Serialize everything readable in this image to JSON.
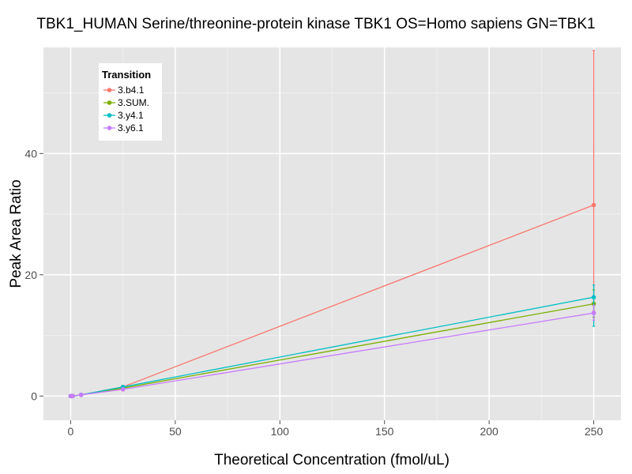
{
  "chart_data": {
    "type": "line",
    "title": "TBK1_HUMAN Serine/threonine-protein kinase TBK1 OS=Homo sapiens GN=TBK1",
    "xlabel": "Theoretical Concentration (fmol/uL)",
    "ylabel": "Peak Area Ratio",
    "xlim": [
      -13,
      263
    ],
    "ylim": [
      -4,
      57.5
    ],
    "xticks": [
      0,
      50,
      100,
      150,
      200,
      250
    ],
    "yticks": [
      0,
      20,
      40
    ],
    "grid": true,
    "legend": {
      "title": "Transition",
      "position": "top-left"
    },
    "x": [
      0,
      0.5,
      1,
      5,
      25,
      250
    ],
    "series": [
      {
        "name": "3.b4.1",
        "color": "#f8766d",
        "values": [
          0,
          0,
          0,
          0.2,
          1.5,
          31.5
        ],
        "error_high": [
          0,
          0,
          0,
          0,
          0,
          57.0
        ],
        "error_low": [
          0,
          0,
          0,
          0,
          0,
          14.0
        ]
      },
      {
        "name": "3.SUM.",
        "color": "#7cae00",
        "values": [
          0,
          0,
          0,
          0.2,
          1.3,
          15.2
        ],
        "error_high": [
          0,
          0,
          0,
          0,
          0,
          17.5
        ],
        "error_low": [
          0,
          0,
          0,
          0,
          0,
          13.0
        ]
      },
      {
        "name": "3.y4.1",
        "color": "#00bfc4",
        "values": [
          0,
          0,
          0,
          0.2,
          1.5,
          16.3
        ],
        "error_high": [
          0,
          0,
          0,
          0,
          0,
          18.3
        ],
        "error_low": [
          0,
          0,
          0,
          0,
          0,
          11.5
        ]
      },
      {
        "name": "3.y6.1",
        "color": "#c77cff",
        "values": [
          0,
          0,
          0,
          0.2,
          1.1,
          13.7
        ],
        "error_high": [
          0,
          0,
          0,
          0,
          0,
          15.0
        ],
        "error_low": [
          0,
          0,
          0,
          0,
          0,
          12.5
        ]
      }
    ]
  }
}
